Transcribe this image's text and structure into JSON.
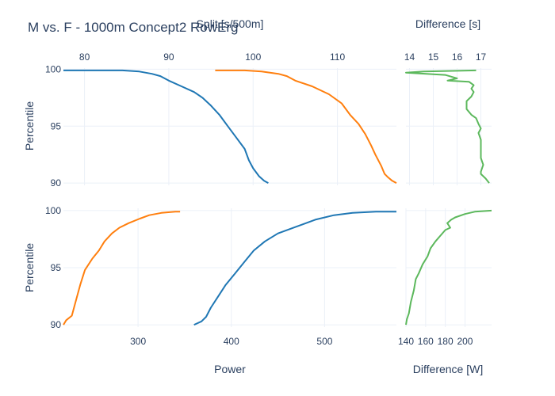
{
  "figure": {
    "title": "M vs. F - 1000m Concept2 RowErg"
  },
  "colors": {
    "male": "#1f77b4",
    "female": "#ff7f0e",
    "difference": "#5cb85c",
    "text": "#2a3f5f",
    "grid": "#ebf0f8"
  },
  "chart_data": [
    {
      "id": "split-panel",
      "type": "line",
      "xlabel": "Split [s/500m]",
      "ylabel": "Percentile",
      "xlim": [
        77.5,
        117.0
      ],
      "ylim": [
        89.8,
        100.1
      ],
      "x_axis_position": "top",
      "xticks": [
        80,
        90,
        100,
        110
      ],
      "yticks": [
        90,
        95,
        100
      ],
      "grid": true,
      "series": [
        {
          "color_key": "male",
          "points": [
            [
              77.5,
              99.9
            ],
            [
              84.5,
              99.9
            ],
            [
              86.5,
              99.8
            ],
            [
              88.0,
              99.6
            ],
            [
              89.0,
              99.4
            ],
            [
              90.0,
              99.0
            ],
            [
              91.5,
              98.5
            ],
            [
              93.0,
              98.0
            ],
            [
              94.0,
              97.5
            ],
            [
              95.0,
              96.8
            ],
            [
              96.0,
              96.0
            ],
            [
              96.5,
              95.5
            ],
            [
              97.0,
              95.0
            ],
            [
              98.0,
              94.0
            ],
            [
              99.0,
              93.0
            ],
            [
              99.5,
              92.0
            ],
            [
              100.0,
              91.3
            ],
            [
              100.7,
              90.6
            ],
            [
              101.3,
              90.2
            ],
            [
              101.8,
              90.0
            ]
          ]
        },
        {
          "color_key": "female",
          "points": [
            [
              95.5,
              99.9
            ],
            [
              99.0,
              99.9
            ],
            [
              101.0,
              99.8
            ],
            [
              103.0,
              99.6
            ],
            [
              104.0,
              99.4
            ],
            [
              105.0,
              99.0
            ],
            [
              107.0,
              98.5
            ],
            [
              109.0,
              97.8
            ],
            [
              110.5,
              97.0
            ],
            [
              111.5,
              96.0
            ],
            [
              112.5,
              95.2
            ],
            [
              113.3,
              94.3
            ],
            [
              114.0,
              93.3
            ],
            [
              114.5,
              92.5
            ],
            [
              115.2,
              91.5
            ],
            [
              115.6,
              90.8
            ],
            [
              116.0,
              90.5
            ],
            [
              116.5,
              90.2
            ],
            [
              117.0,
              90.0
            ]
          ]
        }
      ]
    },
    {
      "id": "split-diff-panel",
      "type": "line",
      "xlabel": "Difference [s]",
      "xlim": [
        13.85,
        17.45
      ],
      "ylim": [
        89.8,
        100.1
      ],
      "x_axis_position": "top",
      "xticks": [
        14,
        15,
        16,
        17
      ],
      "grid": true,
      "series": [
        {
          "color_key": "difference",
          "points": [
            [
              16.8,
              99.9
            ],
            [
              14.6,
              99.8
            ],
            [
              13.85,
              99.7
            ],
            [
              15.5,
              99.5
            ],
            [
              16.0,
              99.2
            ],
            [
              15.6,
              99.0
            ],
            [
              16.5,
              98.9
            ],
            [
              16.7,
              98.6
            ],
            [
              16.6,
              98.3
            ],
            [
              16.7,
              98.0
            ],
            [
              16.6,
              97.6
            ],
            [
              16.4,
              97.2
            ],
            [
              16.4,
              96.5
            ],
            [
              16.6,
              96.0
            ],
            [
              16.8,
              95.7
            ],
            [
              16.9,
              95.2
            ],
            [
              17.0,
              94.8
            ],
            [
              16.9,
              94.4
            ],
            [
              17.0,
              93.8
            ],
            [
              17.0,
              93.0
            ],
            [
              17.0,
              92.2
            ],
            [
              17.1,
              91.6
            ],
            [
              17.0,
              91.0
            ],
            [
              17.0,
              90.8
            ],
            [
              17.2,
              90.4
            ],
            [
              17.35,
              90.0
            ]
          ]
        }
      ]
    },
    {
      "id": "power-panel",
      "type": "line",
      "xlabel": "Power",
      "ylabel": "Percentile",
      "xlim": [
        220,
        577
      ],
      "ylim": [
        89.8,
        100.2
      ],
      "x_axis_position": "bottom",
      "xticks": [
        300,
        400,
        500
      ],
      "yticks": [
        90,
        95,
        100
      ],
      "grid": true,
      "series": [
        {
          "color_key": "male",
          "points": [
            [
              360,
              90.0
            ],
            [
              368,
              90.3
            ],
            [
              373,
              90.7
            ],
            [
              378,
              91.5
            ],
            [
              386,
              92.5
            ],
            [
              394,
              93.5
            ],
            [
              404,
              94.5
            ],
            [
              414,
              95.5
            ],
            [
              424,
              96.5
            ],
            [
              436,
              97.3
            ],
            [
              450,
              98.0
            ],
            [
              470,
              98.6
            ],
            [
              490,
              99.2
            ],
            [
              510,
              99.6
            ],
            [
              530,
              99.8
            ],
            [
              555,
              99.9
            ],
            [
              577,
              99.9
            ]
          ]
        },
        {
          "color_key": "female",
          "points": [
            [
              220,
              90.0
            ],
            [
              223,
              90.4
            ],
            [
              229,
              90.8
            ],
            [
              233,
              92.0
            ],
            [
              238,
              93.5
            ],
            [
              243,
              94.8
            ],
            [
              251,
              95.8
            ],
            [
              258,
              96.5
            ],
            [
              264,
              97.3
            ],
            [
              272,
              98.0
            ],
            [
              280,
              98.5
            ],
            [
              290,
              98.9
            ],
            [
              302,
              99.3
            ],
            [
              312,
              99.6
            ],
            [
              325,
              99.8
            ],
            [
              340,
              99.9
            ],
            [
              345,
              99.9
            ]
          ]
        }
      ]
    },
    {
      "id": "power-diff-panel",
      "type": "line",
      "xlabel": "Difference [W]",
      "xlim": [
        140,
        227
      ],
      "ylim": [
        89.8,
        100.2
      ],
      "x_axis_position": "bottom",
      "xticks": [
        140,
        160,
        180,
        200
      ],
      "grid": true,
      "series": [
        {
          "color_key": "difference",
          "points": [
            [
              140,
              90.0
            ],
            [
              141,
              90.5
            ],
            [
              143,
              91.0
            ],
            [
              145,
              92.0
            ],
            [
              148,
              93.0
            ],
            [
              150,
              94.0
            ],
            [
              153,
              94.5
            ],
            [
              157,
              95.3
            ],
            [
              162,
              96.0
            ],
            [
              165,
              96.7
            ],
            [
              170,
              97.3
            ],
            [
              175,
              97.8
            ],
            [
              180,
              98.3
            ],
            [
              185,
              98.5
            ],
            [
              182,
              98.9
            ],
            [
              186,
              99.2
            ],
            [
              190,
              99.4
            ],
            [
              200,
              99.7
            ],
            [
              210,
              99.9
            ],
            [
              227,
              100.0
            ]
          ]
        }
      ]
    }
  ]
}
